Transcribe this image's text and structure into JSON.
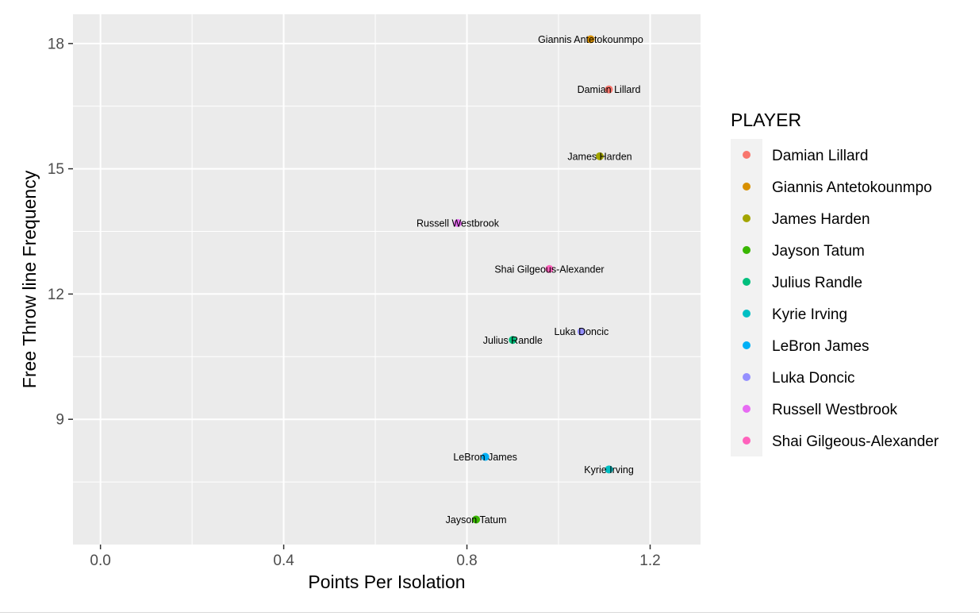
{
  "chart_data": {
    "type": "scatter",
    "title": "",
    "xlabel": "Points Per Isolation",
    "ylabel": "Free Throw line Frequency",
    "xlim": [
      -0.06,
      1.31
    ],
    "ylim": [
      6.0,
      18.7
    ],
    "x_ticks": [
      0.0,
      0.4,
      0.8,
      1.2
    ],
    "x_tick_labels": [
      "0.0",
      "0.4",
      "0.8",
      "1.2"
    ],
    "y_ticks": [
      9,
      12,
      15,
      18
    ],
    "y_tick_labels": [
      "9",
      "12",
      "15",
      "18"
    ],
    "grid": true,
    "legend": {
      "title": "PLAYER",
      "position": "right"
    },
    "series": [
      {
        "name": "Damian Lillard",
        "color": "#F8766D",
        "x": 1.11,
        "y": 16.9
      },
      {
        "name": "Giannis Antetokounmpo",
        "color": "#D89000",
        "x": 1.07,
        "y": 18.1
      },
      {
        "name": "James Harden",
        "color": "#A3A500",
        "x": 1.09,
        "y": 15.3
      },
      {
        "name": "Jayson Tatum",
        "color": "#39B600",
        "x": 0.82,
        "y": 6.6
      },
      {
        "name": "Julius Randle",
        "color": "#00BF7D",
        "x": 0.9,
        "y": 10.9
      },
      {
        "name": "Kyrie Irving",
        "color": "#00BFC4",
        "x": 1.11,
        "y": 7.8
      },
      {
        "name": "LeBron James",
        "color": "#00B0F6",
        "x": 0.84,
        "y": 8.1
      },
      {
        "name": "Luka Doncic",
        "color": "#9590FF",
        "x": 1.05,
        "y": 11.1
      },
      {
        "name": "Russell Westbrook",
        "color": "#E76BF3",
        "x": 0.78,
        "y": 13.7
      },
      {
        "name": "Shai Gilgeous-Alexander",
        "color": "#FF62BC",
        "x": 0.98,
        "y": 12.6
      }
    ]
  },
  "colors": {
    "panel_background": "#EBEBEB",
    "grid_major": "#FFFFFF",
    "tick_label": "#4D4D4D",
    "legend_key_background": "#F2F2F2"
  }
}
